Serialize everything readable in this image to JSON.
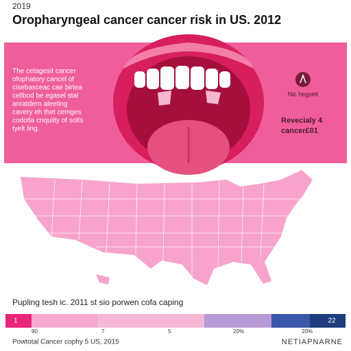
{
  "header": {
    "year": "2019",
    "title": "Oropharyngeal cancer cancer risk in US. 2012"
  },
  "banner": {
    "description": [
      "The cetagesit cancer",
      "ofophatory cancel of",
      "cisebasceac cae birtea",
      "cellbod be egasel stal",
      "anratdern aleeting",
      "cavery eh thet cemges",
      "codotla cnquiity of solts",
      "tyelt ling."
    ],
    "icon_label": "Nic hegseit",
    "side_text": [
      "Revecialy 4",
      "cancer£01"
    ]
  },
  "legend": {
    "title": "Pupling tesh ic. 2011 st sio porwen cofa caping",
    "scale_start": "1",
    "scale_end": "22",
    "ticks": [
      "90",
      "7",
      "5",
      "20%",
      "20%"
    ]
  },
  "footer": {
    "source": "Powtotal Cancer cophy 5 US, 2015",
    "brand": "NETIAPNARNE"
  }
}
